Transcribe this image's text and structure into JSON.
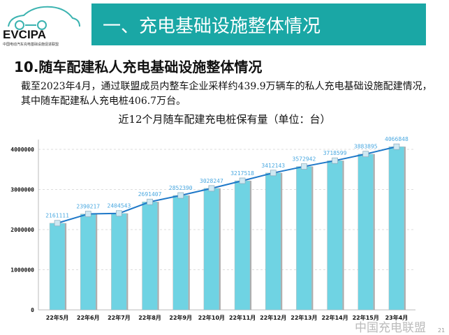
{
  "logo": {
    "text": "EVCIPA",
    "subtitle": "中国电动汽车充电基础设施促进联盟"
  },
  "header": {
    "title": "一、充电基础设施整体情况"
  },
  "section": {
    "title": "10.随车配建私人充电基础设施整体情况"
  },
  "paragraph": "截至2023年4月，通过联盟成员内整车企业采样约439.9万辆车的私人充电基础设施配建情况，其中随车配建私人充电桩406.7万台。",
  "chart_data": {
    "type": "bar",
    "title": "近12个月随车配建充电桩保有量（单位：台）",
    "categories": [
      "22年5月",
      "22年6月",
      "22年7月",
      "22年8月",
      "22年9月",
      "22年10月",
      "22年11月",
      "22年12月",
      "22年13月",
      "22年14月",
      "22年15月",
      "23年4月"
    ],
    "values": [
      2161111,
      2390217,
      2404543,
      2691407,
      2852390,
      3028247,
      3217518,
      3412143,
      3572942,
      3718599,
      3883895,
      4066848
    ],
    "ylim": [
      0,
      4000000
    ],
    "yticks": [
      0,
      1000000,
      2000000,
      3000000,
      4000000
    ],
    "overlay_line": true,
    "grid": "horizontal dashed",
    "colors": {
      "bar": "#6fd3e3",
      "line": "#1e78c8",
      "label": "#4aa8e0"
    }
  },
  "watermark": "中国充电联盟",
  "page_number": "21"
}
